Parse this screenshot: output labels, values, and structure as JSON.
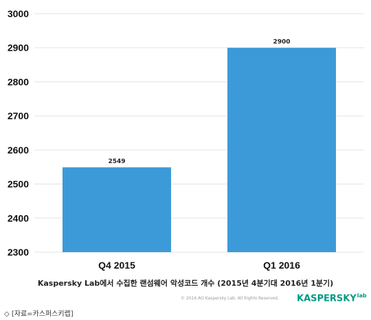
{
  "chart_data": {
    "type": "bar",
    "categories": [
      "Q4 2015",
      "Q1 2016"
    ],
    "values": [
      2549,
      2900
    ],
    "data_labels": [
      "2549",
      "2900"
    ],
    "ylim": [
      2300,
      3000
    ],
    "yticks": [
      2300,
      2400,
      2500,
      2600,
      2700,
      2800,
      2900,
      3000
    ],
    "grid": true,
    "bar_color": "#3d9ad8",
    "grid_color": "#e3e3e3",
    "title": "Kaspersky Lab에서 수집한 랜섬웨어 악성코드 개수 (2015년 4분기대 2016년 1분기)",
    "xlabel": "",
    "ylabel": ""
  },
  "footer": {
    "copyright": "© 2016 AO Kaspersky Lab. All Rights Reserved.",
    "logo_text": "KASPERSKY",
    "logo_suffix": "lab",
    "logo_color": "#009982",
    "source": "◇ [자료=카스퍼스키랩]"
  }
}
